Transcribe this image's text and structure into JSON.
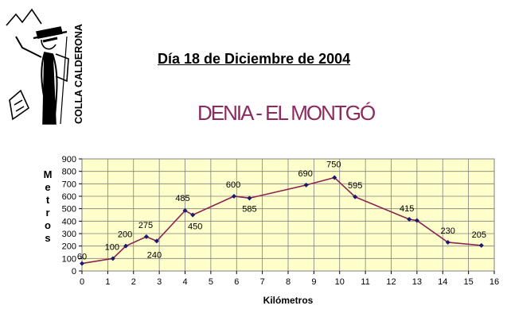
{
  "header": {
    "logo_text": "COLLA CALDERONA",
    "date_title": "Día 18 de Diciembre de 2004",
    "route_title": "DENIA - EL MONTGÓ"
  },
  "chart_data": {
    "type": "line",
    "title": "",
    "xlabel": "Kilómetros",
    "ylabel": "Metros",
    "xlim": [
      0,
      16
    ],
    "ylim": [
      0,
      900
    ],
    "x_ticks": [
      "0",
      "1",
      "2",
      "3",
      "4",
      "5",
      "6",
      "7",
      "8",
      "9",
      "10",
      "11",
      "12",
      "13",
      "14",
      "15",
      "16"
    ],
    "y_ticks": [
      "0",
      "100",
      "200",
      "300",
      "400",
      "500",
      "600",
      "700",
      "800",
      "900"
    ],
    "grid": true,
    "legend": "none",
    "colors": {
      "line": "#8b2252",
      "marker": "#1a1a6e",
      "plot_bg": "#ffffcc",
      "grid": "#7f7f7f"
    },
    "series": [
      {
        "x": [
          0,
          1.2,
          1.7,
          2.5,
          2.9,
          4.0,
          4.3,
          5.9,
          6.5,
          8.7,
          9.8,
          10.6,
          12.7,
          13.0,
          14.2,
          15.5
        ],
        "y": [
          60,
          100,
          200,
          275,
          240,
          485,
          450,
          600,
          585,
          690,
          750,
          595,
          415,
          405,
          230,
          205
        ]
      }
    ],
    "data_labels": [
      "60",
      "100",
      "200",
      "275",
      "240",
      "485",
      "450",
      "600",
      "585",
      "690",
      "750",
      "595",
      "415",
      "",
      "230",
      "205"
    ]
  }
}
